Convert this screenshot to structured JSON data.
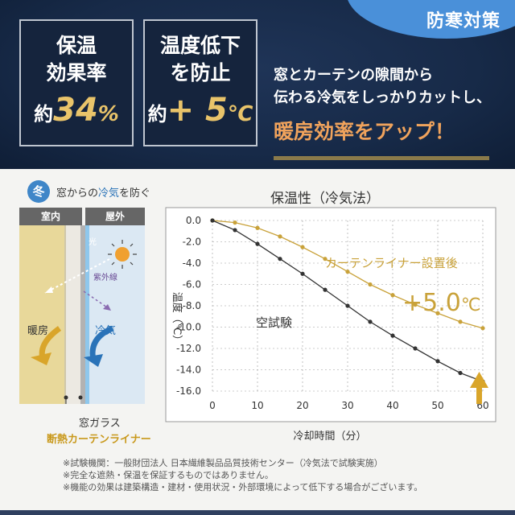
{
  "corner_tag": "防寒対策",
  "badge_left": {
    "line1": "保温",
    "line2": "効果率",
    "prefix": "約",
    "number": "34",
    "unit": "%"
  },
  "badge_right": {
    "line1": "温度低下",
    "line2": "を防止",
    "prefix": "約",
    "number": "+ 5",
    "unit": "℃"
  },
  "headline": {
    "line1": "窓とカーテンの隙間から",
    "line2": "伝わる冷気をしっかりカットし、",
    "highlight": "暖房効率をアップ！"
  },
  "season": {
    "badge": "冬",
    "caption_pre": "窓からの",
    "caption_blue": "冷気",
    "caption_post": "を防ぐ"
  },
  "diagram": {
    "indoor": "室内",
    "outdoor": "屋外",
    "sunlight": "光",
    "uv": "紫外線",
    "heating": "暖房",
    "cold_air": "冷気",
    "glass_caption": "窓ガラス",
    "liner_caption": "断熱カーテンライナー"
  },
  "colors": {
    "navy": "#172a48",
    "gold": "#c9a23a",
    "dark": "#333333",
    "accent_blue": "#4a90d9",
    "orange": "#f0a35c"
  },
  "chart_data": {
    "type": "line",
    "title": "保温性（冷気法）",
    "xlabel": "冷却時間（分）",
    "ylabel": "温度（℃）",
    "xlim": [
      0,
      60
    ],
    "ylim": [
      -16,
      0
    ],
    "xticks": [
      0,
      10,
      20,
      30,
      40,
      50,
      60
    ],
    "yticks": [
      "0.0",
      "-2.0",
      "-4.0",
      "-6.0",
      "-8.0",
      "-10.0",
      "-12.0",
      "-14.0",
      "-16.0"
    ],
    "x": [
      0,
      5,
      10,
      15,
      20,
      25,
      30,
      35,
      40,
      45,
      50,
      55,
      60
    ],
    "series": [
      {
        "name": "カーテンライナー設置後",
        "color": "#c9a23a",
        "values": [
          0.0,
          -0.2,
          -0.7,
          -1.5,
          -2.5,
          -3.6,
          -4.8,
          -6.0,
          -7.0,
          -7.9,
          -8.7,
          -9.5,
          -10.1
        ]
      },
      {
        "name": "空試験",
        "color": "#333333",
        "values": [
          0.0,
          -0.9,
          -2.2,
          -3.6,
          -5.0,
          -6.5,
          -8.0,
          -9.5,
          -10.8,
          -12.0,
          -13.2,
          -14.3,
          -15.1
        ]
      }
    ],
    "annotation": {
      "value": "+5.0",
      "unit": "℃"
    }
  },
  "notes": [
    "※試験機関：一般財団法人 日本繊維製品品質技術センター（冷気法で試験実施）",
    "※完全な遮熱・保温を保証するものではありません。",
    "※機能の効果は建築構造・建材・使用状況・外部環境によって低下する場合がございます。"
  ]
}
